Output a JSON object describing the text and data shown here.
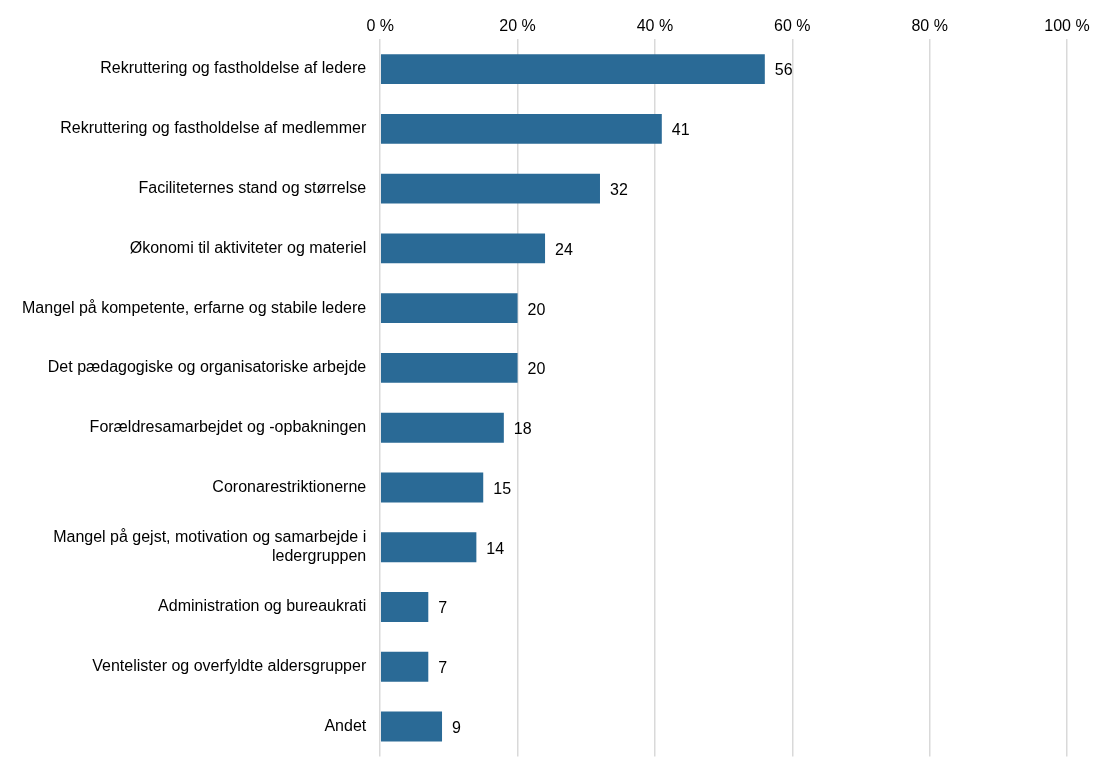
{
  "chart_data": {
    "type": "bar",
    "orientation": "horizontal",
    "categories": [
      "Rekruttering og fastholdelse af ledere",
      "Rekruttering og fastholdelse af medlemmer",
      "Faciliteternes stand og størrelse",
      "Økonomi til aktiviteter og materiel",
      "Mangel på kompetente, erfarne og stabile ledere",
      "Det pædagogiske og organisatoriske arbejde",
      "Forældresamarbejdet og -opbakningen",
      "Coronarestriktionerne",
      "Mangel på gejst, motivation og samarbejde i ledergruppen",
      "Administration og bureaukrati",
      "Ventelister og overfyldte aldersgrupper",
      "Andet"
    ],
    "values": [
      56,
      41,
      32,
      24,
      20,
      20,
      18,
      15,
      14,
      7,
      7,
      9
    ],
    "color": "#2a6a96",
    "xlim": [
      0,
      100
    ],
    "xticks": [
      {
        "value": 0,
        "label": "0 %"
      },
      {
        "value": 20,
        "label": "20 %"
      },
      {
        "value": 40,
        "label": "40 %"
      },
      {
        "value": 60,
        "label": "60 %"
      },
      {
        "value": 80,
        "label": "80 %"
      },
      {
        "value": 100,
        "label": "100 %"
      }
    ],
    "grid": "x",
    "data_labels": true,
    "legend": false
  }
}
